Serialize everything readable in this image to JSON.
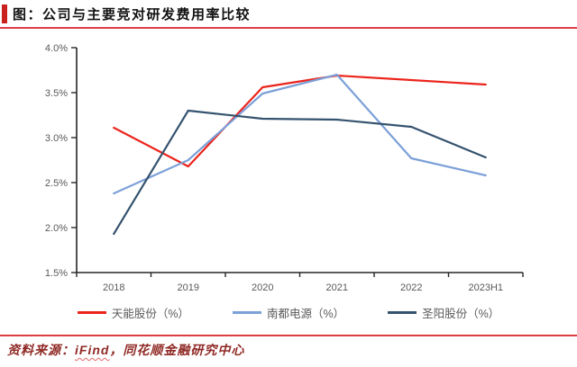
{
  "header": {
    "title": "图：公司与主要竞对研发费用率比较"
  },
  "chart_data": {
    "type": "line",
    "title": "公司与主要竞对研发费用率比较",
    "categories": [
      "2018",
      "2019",
      "2020",
      "2021",
      "2022",
      "2023H1"
    ],
    "series": [
      {
        "name": "天能股份（%）",
        "color": "#eb241b",
        "values": [
          3.11,
          2.68,
          3.56,
          3.69,
          3.64,
          3.59
        ]
      },
      {
        "name": "南都电源（%）",
        "color": "#7ca0d8",
        "values": [
          2.38,
          2.75,
          3.49,
          3.7,
          2.77,
          2.58
        ]
      },
      {
        "name": "圣阳股份（%）",
        "color": "#35536f",
        "values": [
          1.93,
          3.3,
          3.21,
          3.2,
          3.12,
          2.78
        ]
      }
    ],
    "xlabel": "",
    "ylabel": "",
    "ylim": [
      1.5,
      4.0
    ],
    "ytick_step": 0.5,
    "yticks": [
      "1.5%",
      "2.0%",
      "2.5%",
      "3.0%",
      "3.5%",
      "4.0%"
    ],
    "grid": false,
    "legend_position": "bottom"
  },
  "footer": {
    "source_label": "资料来源：",
    "source_name": "iFind",
    "source_rest": "，同花顺金融研究中心"
  },
  "colors": {
    "accent_red": "#dd3e44",
    "bar_red": "#c9211e",
    "axis": "#262626",
    "tick_label": "#595959",
    "source_text": "#8f2a25"
  }
}
